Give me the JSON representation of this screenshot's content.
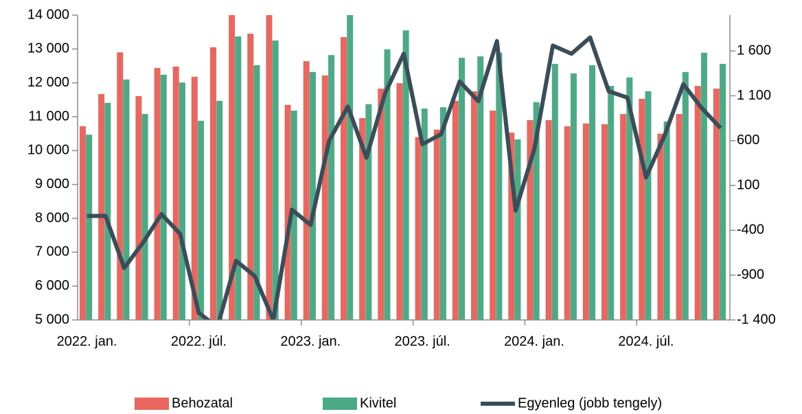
{
  "chart_data": {
    "type": "bar_line",
    "categories": [
      "2022. jan.",
      null,
      null,
      null,
      null,
      null,
      "2022. júl.",
      null,
      null,
      null,
      null,
      null,
      "2023. jan.",
      null,
      null,
      null,
      null,
      null,
      "2023. júl.",
      null,
      null,
      null,
      null,
      null,
      "2024. jan.",
      null,
      null,
      null,
      null,
      null,
      "2024. júl.",
      null,
      null,
      null,
      null
    ],
    "series": [
      {
        "name": "Behozatal",
        "color": "#e8675f",
        "type": "bar",
        "values": [
          10720,
          11670,
          12900,
          11610,
          12440,
          12480,
          12180,
          13050,
          14200,
          13450,
          14300,
          11350,
          12640,
          12220,
          13350,
          10960,
          11830,
          11990,
          10400,
          10620,
          11470,
          11750,
          11180,
          10530,
          10900,
          10900,
          10720,
          10800,
          10780,
          11080,
          11530,
          10500,
          11080,
          11910,
          11830
        ]
      },
      {
        "name": "Kivitel",
        "color": "#4daa87",
        "type": "bar",
        "values": [
          10470,
          11410,
          12100,
          11080,
          12240,
          12010,
          10880,
          11470,
          13370,
          12520,
          13250,
          11180,
          12320,
          12820,
          14100,
          11370,
          12990,
          13550,
          11240,
          11280,
          12740,
          12780,
          12890,
          10330,
          11430,
          12560,
          12280,
          12520,
          11910,
          12160,
          11750,
          10860,
          12320,
          12890,
          12560
        ]
      },
      {
        "name": "Egyenleg (jobb tengely)",
        "color": "#3c4d5a",
        "type": "line",
        "axis": "y2",
        "values": [
          -240,
          -240,
          -820,
          -540,
          -220,
          -440,
          -1320,
          -1480,
          -740,
          -910,
          -1400,
          -170,
          -340,
          600,
          980,
          410,
          1130,
          1570,
          560,
          670,
          1260,
          1040,
          1710,
          -180,
          500,
          1660,
          1570,
          1750,
          1150,
          1080,
          190,
          660,
          1230,
          960,
          740
        ]
      }
    ],
    "ylim": [
      5000,
      14000
    ],
    "yticks": [
      {
        "value": 5000,
        "label": "5 000"
      },
      {
        "value": 6000,
        "label": "6 000"
      },
      {
        "value": 7000,
        "label": "7 000"
      },
      {
        "value": 8000,
        "label": "8 000"
      },
      {
        "value": 9000,
        "label": "9 000"
      },
      {
        "value": 10000,
        "label": "10 000"
      },
      {
        "value": 11000,
        "label": "11 000"
      },
      {
        "value": 12000,
        "label": "12 000"
      },
      {
        "value": 13000,
        "label": "13 000"
      },
      {
        "value": 14000,
        "label": "14 000"
      }
    ],
    "y2lim": [
      -1400,
      2000
    ],
    "y2ticks": [
      {
        "value": -1400,
        "label": "-1 400"
      },
      -900,
      -400,
      100,
      600,
      {
        "value": 1100,
        "label": "1 100"
      },
      {
        "value": 1600,
        "label": "1 600"
      }
    ],
    "legend": "bottom"
  }
}
